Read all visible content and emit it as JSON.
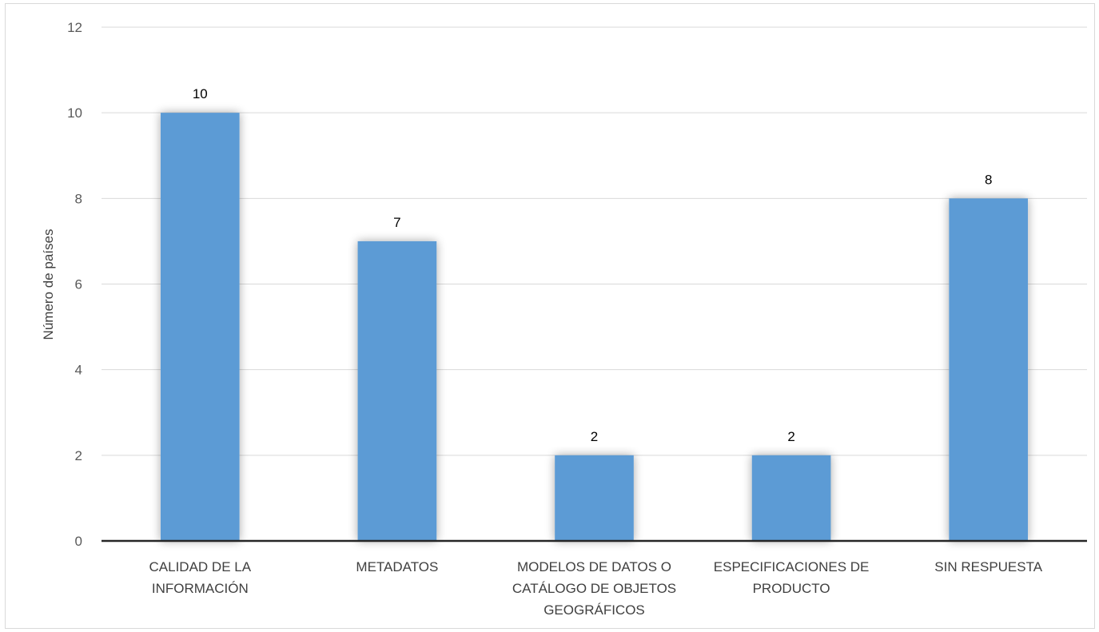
{
  "chart_data": {
    "type": "bar",
    "categories": [
      [
        "CALIDAD DE LA",
        "INFORMACIÓN"
      ],
      [
        "METADATOS"
      ],
      [
        "MODELOS DE DATOS O",
        "CATÁLOGO DE OBJETOS",
        "GEOGRÁFICOS"
      ],
      [
        "ESPECIFICACIONES DE",
        "PRODUCTO"
      ],
      [
        "SIN RESPUESTA"
      ]
    ],
    "values": [
      10,
      7,
      2,
      2,
      8
    ],
    "ylabel": "Número de países",
    "ylim": [
      0,
      12
    ],
    "yticks": [
      0,
      2,
      4,
      6,
      8,
      10,
      12
    ],
    "grid": true,
    "data_labels": true,
    "colors": {
      "bar": "#5b9bd5",
      "grid": "#d9d9d9",
      "axis": "#262626"
    }
  }
}
